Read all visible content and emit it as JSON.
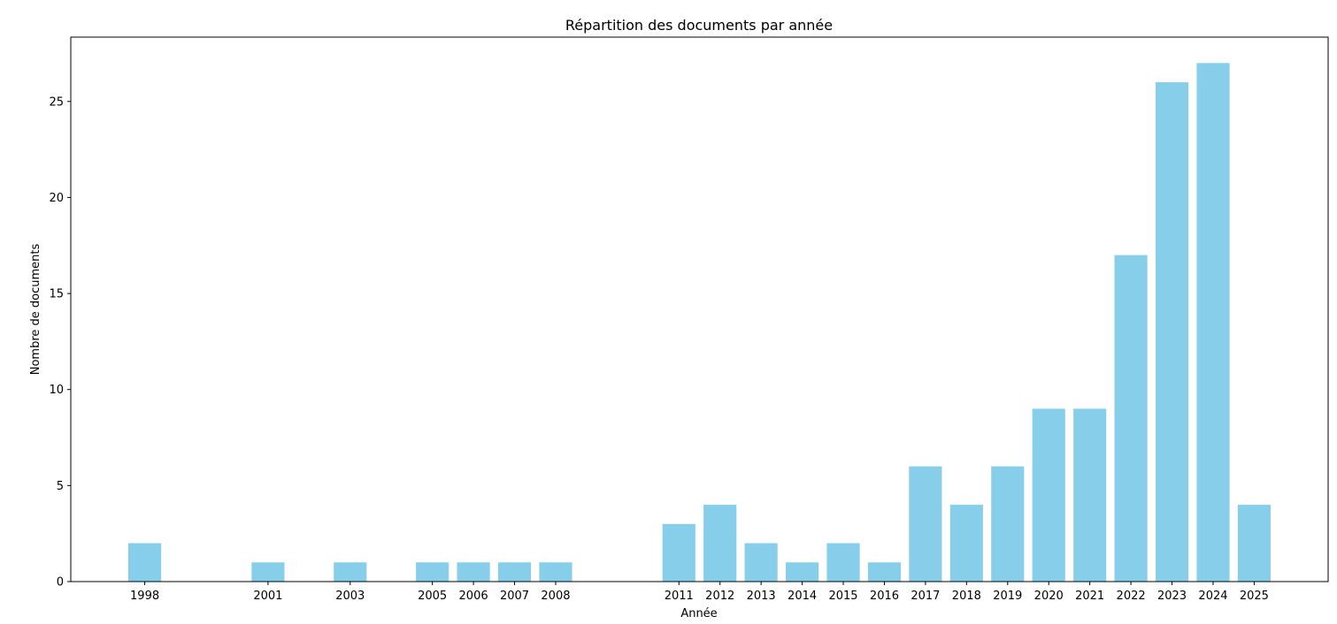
{
  "chart_data": {
    "type": "bar",
    "title": "Répartition des documents par année",
    "xlabel": "Année",
    "ylabel": "Nombre de documents",
    "categories": [
      "1998",
      "2001",
      "2003",
      "2005",
      "2006",
      "2007",
      "2008",
      "2011",
      "2012",
      "2013",
      "2014",
      "2015",
      "2016",
      "2017",
      "2018",
      "2019",
      "2020",
      "2021",
      "2022",
      "2023",
      "2024",
      "2025"
    ],
    "values": [
      2,
      1,
      1,
      1,
      1,
      1,
      1,
      3,
      4,
      2,
      1,
      2,
      1,
      6,
      4,
      6,
      9,
      9,
      17,
      26,
      27,
      4
    ],
    "xlim": [
      1996.2,
      2026.8
    ],
    "ylim": [
      0,
      28.35
    ],
    "yticks": [
      0,
      5,
      10,
      15,
      20,
      25
    ],
    "bar_color": "#87ceeb",
    "grid": false,
    "legend": "none"
  }
}
